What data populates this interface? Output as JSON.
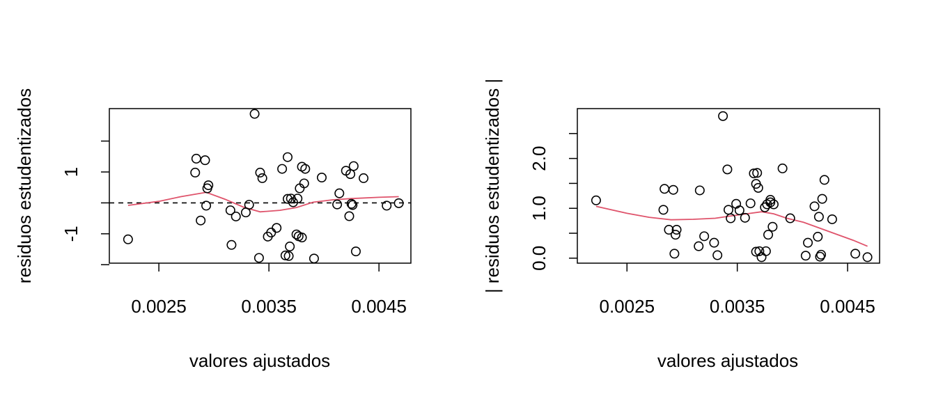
{
  "chart_data": [
    {
      "type": "scatter",
      "xlabel": "valores ajustados",
      "ylabel": "residuos estudentizados",
      "xlim": [
        0.00205,
        0.00479
      ],
      "ylim": [
        -1.95,
        3.05
      ],
      "xticks": [
        0.0025,
        0.0035,
        0.0045
      ],
      "xtick_labels": [
        "0.0025",
        "0.0035",
        "0.0045"
      ],
      "yticks": [
        -2,
        -1,
        0,
        1,
        2
      ],
      "ytick_labels": [
        "",
        "-1",
        "",
        "1",
        ""
      ],
      "reference_line": {
        "y": 0,
        "style": "dashed",
        "color": "#000000"
      },
      "smooth_color": "#DF536B",
      "points": [
        [
          0.00222,
          -1.18
        ],
        [
          0.00283,
          0.98
        ],
        [
          0.00284,
          1.43
        ],
        [
          0.00288,
          -0.57
        ],
        [
          0.00292,
          1.38
        ],
        [
          0.00293,
          -0.09
        ],
        [
          0.00294,
          0.47
        ],
        [
          0.00295,
          0.57
        ],
        [
          0.00315,
          -0.24
        ],
        [
          0.00316,
          -1.36
        ],
        [
          0.0032,
          -0.44
        ],
        [
          0.00329,
          -0.31
        ],
        [
          0.00332,
          -0.06
        ],
        [
          0.00337,
          2.88
        ],
        [
          0.00341,
          -1.78
        ],
        [
          0.00342,
          0.98
        ],
        [
          0.00344,
          0.8
        ],
        [
          0.00349,
          -1.09
        ],
        [
          0.00352,
          -0.96
        ],
        [
          0.00357,
          -0.81
        ],
        [
          0.00362,
          1.1
        ],
        [
          0.00365,
          -1.7
        ],
        [
          0.00367,
          1.48
        ],
        [
          0.00367,
          0.13
        ],
        [
          0.00368,
          -1.72
        ],
        [
          0.00369,
          -1.41
        ],
        [
          0.0037,
          0.14
        ],
        [
          0.00372,
          0.02
        ],
        [
          0.00375,
          -1.02
        ],
        [
          0.00376,
          0.14
        ],
        [
          0.00377,
          -1.08
        ],
        [
          0.00378,
          0.47
        ],
        [
          0.0038,
          1.17
        ],
        [
          0.0038,
          -1.12
        ],
        [
          0.00382,
          0.63
        ],
        [
          0.00383,
          1.1
        ],
        [
          0.00391,
          -1.8
        ],
        [
          0.00398,
          0.82
        ],
        [
          0.00412,
          -0.05
        ],
        [
          0.00414,
          0.31
        ],
        [
          0.0042,
          1.04
        ],
        [
          0.00423,
          -0.43
        ],
        [
          0.00424,
          0.93
        ],
        [
          0.00425,
          -0.03
        ],
        [
          0.00426,
          -0.07
        ],
        [
          0.00427,
          1.19
        ],
        [
          0.00429,
          -1.57
        ],
        [
          0.00436,
          0.8
        ],
        [
          0.00457,
          -0.09
        ],
        [
          0.00468,
          -0.01
        ]
      ],
      "smooth": [
        [
          0.00222,
          -0.08
        ],
        [
          0.0025,
          0.05
        ],
        [
          0.0027,
          0.2
        ],
        [
          0.00293,
          0.34
        ],
        [
          0.0031,
          0.12
        ],
        [
          0.00327,
          -0.14
        ],
        [
          0.00342,
          -0.29
        ],
        [
          0.0036,
          -0.24
        ],
        [
          0.00375,
          -0.15
        ],
        [
          0.0039,
          0.02
        ],
        [
          0.00408,
          0.1
        ],
        [
          0.00425,
          0.14
        ],
        [
          0.0045,
          0.18
        ],
        [
          0.00468,
          0.2
        ]
      ]
    },
    {
      "type": "scatter",
      "xlabel": "valores ajustados",
      "ylabel": "| residuos estudentizados |",
      "xlim": [
        0.00205,
        0.00479
      ],
      "ylim": [
        -0.1,
        3.0
      ],
      "xticks": [
        0.0025,
        0.0035,
        0.0045
      ],
      "xtick_labels": [
        "0.0025",
        "0.0035",
        "0.0045"
      ],
      "yticks": [
        0.0,
        0.5,
        1.0,
        1.5,
        2.0,
        2.5
      ],
      "ytick_labels": [
        "0.0",
        "",
        "1.0",
        "",
        "2.0",
        ""
      ],
      "smooth_color": "#DF536B",
      "points": [
        [
          0.00222,
          1.16
        ],
        [
          0.00283,
          0.97
        ],
        [
          0.00284,
          1.39
        ],
        [
          0.00288,
          0.57
        ],
        [
          0.00292,
          1.37
        ],
        [
          0.00293,
          0.09
        ],
        [
          0.00294,
          0.47
        ],
        [
          0.00295,
          0.57
        ],
        [
          0.00315,
          0.24
        ],
        [
          0.00316,
          1.36
        ],
        [
          0.0032,
          0.44
        ],
        [
          0.00329,
          0.31
        ],
        [
          0.00332,
          0.06
        ],
        [
          0.00337,
          2.85
        ],
        [
          0.00341,
          1.78
        ],
        [
          0.00342,
          0.97
        ],
        [
          0.00344,
          0.8
        ],
        [
          0.00349,
          1.09
        ],
        [
          0.00352,
          0.96
        ],
        [
          0.00357,
          0.81
        ],
        [
          0.00362,
          1.1
        ],
        [
          0.00365,
          1.7
        ],
        [
          0.00367,
          1.49
        ],
        [
          0.00367,
          0.13
        ],
        [
          0.00368,
          1.71
        ],
        [
          0.00369,
          1.41
        ],
        [
          0.0037,
          0.14
        ],
        [
          0.00372,
          0.02
        ],
        [
          0.00375,
          1.02
        ],
        [
          0.00376,
          0.14
        ],
        [
          0.00377,
          1.08
        ],
        [
          0.00378,
          0.47
        ],
        [
          0.0038,
          1.17
        ],
        [
          0.0038,
          1.12
        ],
        [
          0.00382,
          0.63
        ],
        [
          0.00383,
          1.08
        ],
        [
          0.00391,
          1.8
        ],
        [
          0.00398,
          0.8
        ],
        [
          0.00412,
          0.05
        ],
        [
          0.00414,
          0.31
        ],
        [
          0.0042,
          1.04
        ],
        [
          0.00423,
          0.43
        ],
        [
          0.00424,
          0.83
        ],
        [
          0.00425,
          0.03
        ],
        [
          0.00426,
          0.07
        ],
        [
          0.00427,
          1.19
        ],
        [
          0.00429,
          1.57
        ],
        [
          0.00436,
          0.78
        ],
        [
          0.00457,
          0.09
        ],
        [
          0.00468,
          0.02
        ]
      ],
      "smooth": [
        [
          0.00222,
          1.04
        ],
        [
          0.0025,
          0.9
        ],
        [
          0.0027,
          0.82
        ],
        [
          0.0029,
          0.77
        ],
        [
          0.0031,
          0.78
        ],
        [
          0.0033,
          0.8
        ],
        [
          0.00345,
          0.85
        ],
        [
          0.00362,
          0.9
        ],
        [
          0.00372,
          0.93
        ],
        [
          0.00383,
          0.89
        ],
        [
          0.00395,
          0.8
        ],
        [
          0.0041,
          0.72
        ],
        [
          0.00425,
          0.6
        ],
        [
          0.0044,
          0.48
        ],
        [
          0.00455,
          0.36
        ],
        [
          0.00468,
          0.24
        ]
      ]
    }
  ]
}
